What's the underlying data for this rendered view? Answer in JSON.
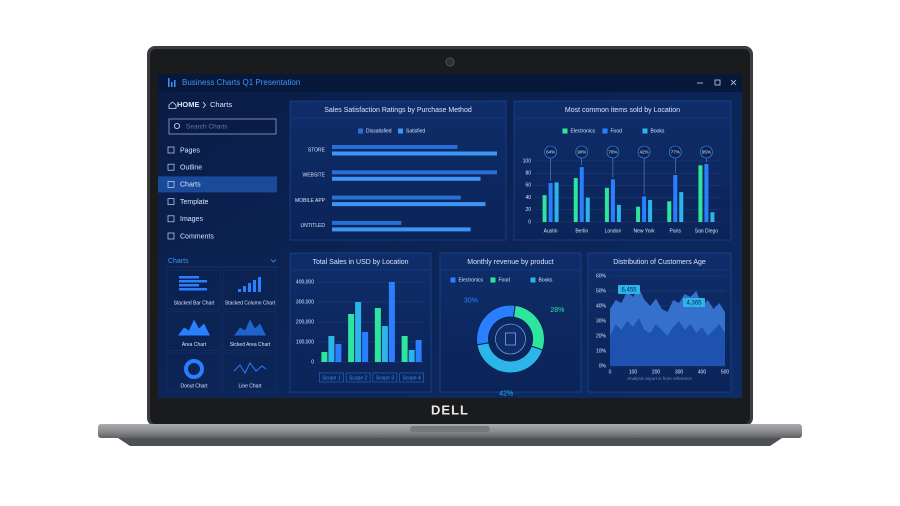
{
  "window": {
    "title": "Business Charts Q1 Presentation"
  },
  "sidebar": {
    "breadcrumb": [
      "HOME",
      "Charts"
    ],
    "search_placeholder": "Search Charts",
    "menu": [
      "Pages",
      "Outline",
      "Charts",
      "Template",
      "Images",
      "Comments"
    ],
    "selected": 2,
    "section_title": "Charts",
    "thumbnails": [
      "Stacked Bar Chart",
      "Stacked Column Chart",
      "Area Chart",
      "Stcked Area Chart",
      "Donut Chart",
      "Line Chart"
    ]
  },
  "device": {
    "brand": "DELL"
  },
  "chart_data": [
    {
      "type": "hbar",
      "title": "Sales Satisfaction Ratings by Purchase Method",
      "categories": [
        "STORE",
        "WEBSITE",
        "MOBILE APP",
        "UNTITLED"
      ],
      "series": [
        {
          "name": "Dissatisfied",
          "color": "#2a6fd6",
          "values": [
            76,
            100,
            78,
            42
          ]
        },
        {
          "name": "Satisfied",
          "color": "#3d95f5",
          "values": [
            100,
            90,
            93,
            84
          ]
        }
      ]
    },
    {
      "type": "grouped_bar",
      "title": "Most common items sold by Location",
      "categories": [
        "Austin",
        "Berlin",
        "London",
        "New York",
        "Paris",
        "San Diego"
      ],
      "series": [
        {
          "name": "Electronics",
          "color": "#2ee59d",
          "values": [
            44,
            72,
            56,
            25,
            34,
            93
          ]
        },
        {
          "name": "Food",
          "color": "#2a7fff",
          "values": [
            64,
            90,
            70,
            42,
            77,
            95
          ],
          "value_labels": [
            "64%",
            "90%",
            "70%",
            "42%",
            "77%",
            "95%"
          ]
        },
        {
          "name": "Books",
          "color": "#2bb5e8",
          "values": [
            65,
            40,
            28,
            36,
            49,
            16
          ]
        }
      ],
      "ylim": [
        0,
        100
      ],
      "yticks": [
        0,
        20,
        40,
        60,
        80,
        100
      ],
      "grid": true
    },
    {
      "type": "column",
      "title": "Total Sales in USD by Location",
      "categories": [
        "Scope 1",
        "Scope 2",
        "Scope 3",
        "Scope 4"
      ],
      "series": [
        {
          "color": "#2ee59d",
          "values": [
            50000,
            240000,
            270000,
            130000
          ]
        },
        {
          "color": "#2bb5e8",
          "values": [
            130000,
            300000,
            180000,
            60000
          ]
        },
        {
          "color": "#2a7fff",
          "values": [
            90000,
            150000,
            400000,
            110000
          ]
        }
      ],
      "ylim": [
        0,
        400000
      ],
      "yticks": [
        0,
        {
          "value": 100000,
          "label": "100,000"
        },
        {
          "value": 200000,
          "label": "200,000"
        },
        {
          "value": 300000,
          "label": "300,000"
        },
        {
          "value": 400000,
          "label": "400,000"
        }
      ],
      "grid": true
    },
    {
      "type": "donut",
      "title": "Monthly revenue by product",
      "categories": [
        "Electronics",
        "Food",
        "Books"
      ],
      "colors": [
        "#2a7fff",
        "#2ee59d",
        "#2bb5e8"
      ],
      "values": [
        30,
        28,
        42
      ],
      "value_labels": [
        "30%",
        "28%",
        "42%"
      ]
    },
    {
      "type": "area",
      "title": "Distribution of Customers Age",
      "x": [
        0,
        25,
        50,
        75,
        100,
        125,
        150,
        175,
        200,
        225,
        250,
        275,
        300,
        325,
        350,
        375,
        400,
        425,
        450,
        475,
        500
      ],
      "series": [
        {
          "color": "#3a78d8",
          "values": [
            38,
            44,
            42,
            50,
            46,
            52,
            44,
            40,
            45,
            38,
            36,
            44,
            42,
            48,
            46,
            50,
            40,
            44,
            38,
            42,
            36
          ]
        },
        {
          "color": "#1b4fae",
          "values": [
            20,
            28,
            24,
            30,
            26,
            32,
            24,
            22,
            28,
            24,
            20,
            26,
            30,
            24,
            28,
            22,
            26,
            20,
            24,
            28,
            22
          ]
        }
      ],
      "xlim": [
        0,
        500
      ],
      "xticks": [
        0,
        100,
        200,
        300,
        400,
        500
      ],
      "ylim": [
        0,
        60
      ],
      "yticks": [
        {
          "value": 0,
          "label": "0%"
        },
        {
          "value": 10,
          "label": "10%"
        },
        {
          "value": 20,
          "label": "20%"
        },
        {
          "value": 30,
          "label": "30%"
        },
        {
          "value": 40,
          "label": "40%"
        },
        {
          "value": 50,
          "label": "50%"
        },
        {
          "value": 60,
          "label": "60%"
        }
      ],
      "annotations": [
        "6,455",
        "4,365"
      ],
      "note": "Analysis report is from reference",
      "grid": true
    }
  ]
}
